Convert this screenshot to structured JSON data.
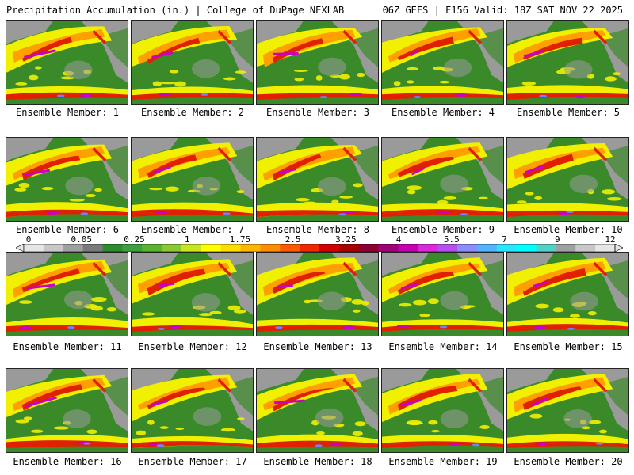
{
  "header": {
    "title": "Precipitation Accumulation (in.) | College of DuPage NEXLAB",
    "run_info": "06Z GEFS | F156 Valid: 18Z SAT NOV 22 2025"
  },
  "members": [
    {
      "label": "Ensemble Member: 1"
    },
    {
      "label": "Ensemble Member: 2"
    },
    {
      "label": "Ensemble Member: 3"
    },
    {
      "label": "Ensemble Member: 4"
    },
    {
      "label": "Ensemble Member: 5"
    },
    {
      "label": "Ensemble Member: 6"
    },
    {
      "label": "Ensemble Member: 7"
    },
    {
      "label": "Ensemble Member: 8"
    },
    {
      "label": "Ensemble Member: 9"
    },
    {
      "label": "Ensemble Member: 10"
    },
    {
      "label": "Ensemble Member: 11"
    },
    {
      "label": "Ensemble Member: 12"
    },
    {
      "label": "Ensemble Member: 13"
    },
    {
      "label": "Ensemble Member: 14"
    },
    {
      "label": "Ensemble Member: 15"
    },
    {
      "label": "Ensemble Member: 16"
    },
    {
      "label": "Ensemble Member: 17"
    },
    {
      "label": "Ensemble Member: 18"
    },
    {
      "label": "Ensemble Member: 19"
    },
    {
      "label": "Ensemble Member: 20"
    }
  ],
  "colorbar": {
    "labels": [
      "0",
      "0.05",
      "0.25",
      "1",
      "1.75",
      "2.5",
      "3.25",
      "4",
      "5.5",
      "7",
      "9",
      "12"
    ],
    "colors": [
      "#e6e6e6",
      "#c8c8c8",
      "#a0a0a0",
      "#7a7a7a",
      "#2e8b2e",
      "#3ca03c",
      "#5ab432",
      "#8cc832",
      "#c8e61e",
      "#ffff00",
      "#ffdc00",
      "#ffb400",
      "#ff8c00",
      "#ff5a00",
      "#f02800",
      "#d20000",
      "#aa0000",
      "#8c0032",
      "#a00078",
      "#c800b4",
      "#dc28dc",
      "#b450f0",
      "#8c8cff",
      "#50b4ff",
      "#28e6ff",
      "#00ffff",
      "#50d2c8",
      "#a0a0a0",
      "#c8c8c8",
      "#e6e6e6"
    ]
  },
  "palette": {
    "ocean_green": "#3a8a2a",
    "land_gray": "#9a9a9a",
    "yellow": "#f0f000",
    "orange": "#ffa000",
    "red": "#e02000",
    "magenta": "#c800c8",
    "blue": "#7080ff"
  }
}
